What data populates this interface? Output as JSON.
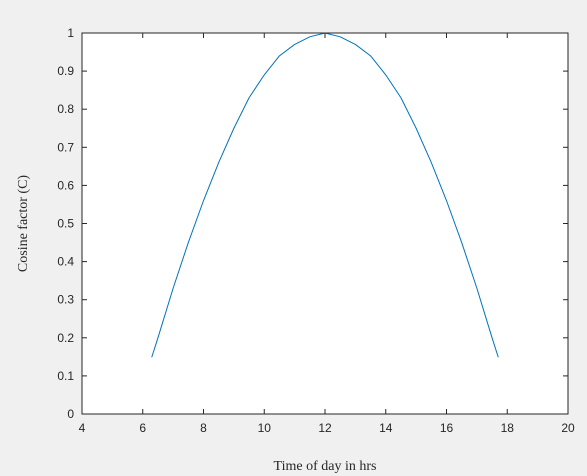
{
  "chart_data": {
    "type": "line",
    "title": "",
    "xlabel": "Time of day in hrs",
    "ylabel": "Cosine factor (C)",
    "xlim": [
      4,
      20
    ],
    "ylim": [
      0,
      1
    ],
    "x_ticks": [
      4,
      6,
      8,
      10,
      12,
      14,
      16,
      18,
      20
    ],
    "y_ticks": [
      0,
      0.1,
      0.2,
      0.3,
      0.4,
      0.5,
      0.6,
      0.7,
      0.8,
      0.9,
      1
    ],
    "grid": false,
    "legend": "none",
    "series": [
      {
        "color": "#0072BD",
        "x": [
          6.3,
          6.5,
          7.0,
          7.5,
          8.0,
          8.5,
          9.0,
          9.5,
          10.0,
          10.5,
          11.0,
          11.5,
          12.0,
          12.5,
          13.0,
          13.5,
          14.0,
          14.5,
          15.0,
          15.5,
          16.0,
          16.5,
          17.0,
          17.5,
          17.7
        ],
        "y": [
          0.15,
          0.2,
          0.33,
          0.45,
          0.56,
          0.66,
          0.75,
          0.83,
          0.89,
          0.94,
          0.97,
          0.99,
          1.0,
          0.99,
          0.97,
          0.94,
          0.89,
          0.83,
          0.75,
          0.66,
          0.56,
          0.45,
          0.33,
          0.2,
          0.15
        ]
      }
    ]
  },
  "colors": {
    "figure_background": "#f0f0f0",
    "axes_background": "#ffffff",
    "axis_color": "#262626"
  }
}
